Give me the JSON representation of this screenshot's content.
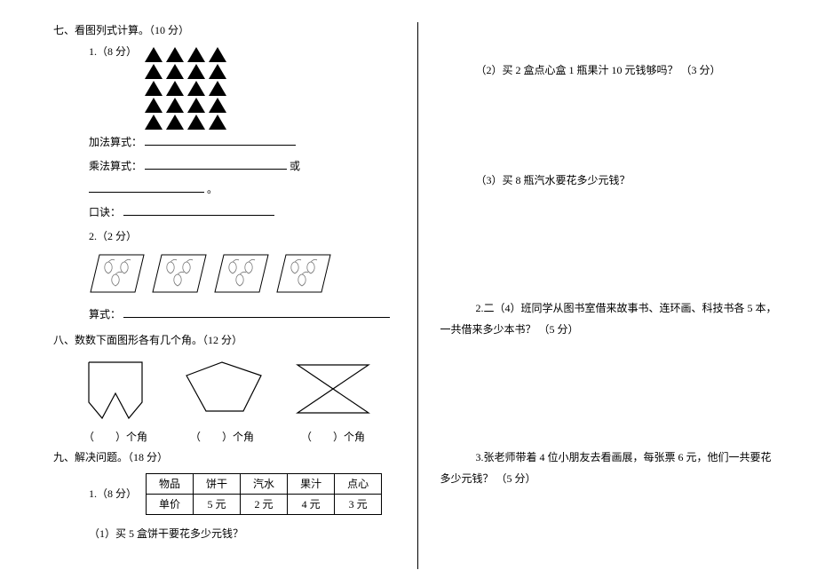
{
  "left": {
    "sec7_title": "七、看图列式计算。（10 分）",
    "q1_label": "1.（8 分）",
    "triangles": {
      "rows": 5,
      "cols": 4
    },
    "addition_label": "加法算式：",
    "mult_label": "乘法算式：",
    "or_text": "或",
    "rhyme_label": "口诀：",
    "q2_label": "2.（2 分）",
    "expr_label": "算式：",
    "sec8_title": "八、数数下面图形各有几个角。（12 分）",
    "angle_text": "（　　）个角",
    "sec9_title": "九、解决问题。（18 分）",
    "q9_1_label": "1.（8 分）",
    "table": {
      "header": [
        "物品",
        "饼干",
        "汽水",
        "果汁",
        "点心"
      ],
      "row2_label": "单价",
      "prices": [
        "5 元",
        "2 元",
        "4 元",
        "3 元"
      ]
    },
    "q9_1_1": "（1）买 5 盒饼干要花多少元钱？"
  },
  "right": {
    "q_2": "（2）买 2 盒点心盒 1 瓶果汁 10 元钱够吗？ （3 分）",
    "q_3": "（3）买 8 瓶汽水要花多少元钱？",
    "q2_full": "2.二（4）班同学从图书室借来故事书、连环画、科技书各 5 本，一共借来多少本书？ （5 分）",
    "q3_full": "3.张老师带着 4 位小朋友去看画展，每张票 6 元，他们一共要花多少元钱？ （5 分）"
  },
  "blanks": {
    "w_add": 170,
    "w_mult1": 160,
    "w_mult2": 130,
    "end_dot": "。",
    "w_rhyme": 170,
    "w_expr": 300
  }
}
